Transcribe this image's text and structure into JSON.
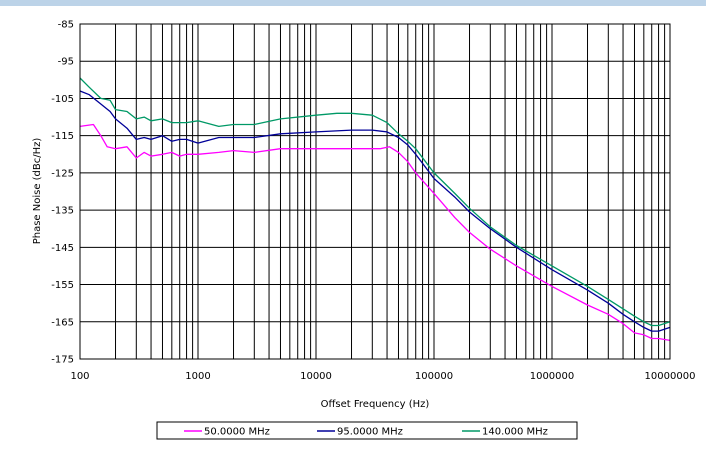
{
  "chart_data": {
    "type": "line",
    "xscale": "log",
    "xlim": [
      100,
      10000000
    ],
    "ylim": [
      -175,
      -85
    ],
    "xlabel": "Offset Frequency (Hz)",
    "ylabel": "Phase Noise (dBc/Hz)",
    "x_ticks": [
      "100",
      "1000",
      "10000",
      "100000",
      "1000000",
      "10000000"
    ],
    "y_ticks": [
      "-85",
      "-95",
      "-105",
      "-115",
      "-125",
      "-135",
      "-145",
      "-155",
      "-165",
      "-175"
    ],
    "grid": true,
    "legend_position": "bottom",
    "series": [
      {
        "name": "50.0000 MHz",
        "color": "#ff00ff",
        "points": [
          [
            100,
            -112.5
          ],
          [
            130,
            -112
          ],
          [
            150,
            -115
          ],
          [
            170,
            -118
          ],
          [
            200,
            -118.5
          ],
          [
            250,
            -118
          ],
          [
            300,
            -121
          ],
          [
            350,
            -119.5
          ],
          [
            400,
            -120.5
          ],
          [
            500,
            -120
          ],
          [
            600,
            -119.5
          ],
          [
            700,
            -120.5
          ],
          [
            800,
            -120
          ],
          [
            1000,
            -120
          ],
          [
            1500,
            -119.5
          ],
          [
            2000,
            -119
          ],
          [
            3000,
            -119.5
          ],
          [
            5000,
            -118.5
          ],
          [
            10000,
            -118.5
          ],
          [
            20000,
            -118.5
          ],
          [
            35000,
            -118.5
          ],
          [
            42000,
            -118
          ],
          [
            50000,
            -119.5
          ],
          [
            60000,
            -122
          ],
          [
            70000,
            -125
          ],
          [
            100000,
            -130.5
          ],
          [
            150000,
            -137
          ],
          [
            200000,
            -141
          ],
          [
            300000,
            -145.5
          ],
          [
            500000,
            -150
          ],
          [
            1000000,
            -155.5
          ],
          [
            2000000,
            -160.5
          ],
          [
            3000000,
            -163
          ],
          [
            4000000,
            -165.5
          ],
          [
            5000000,
            -168
          ],
          [
            6000000,
            -168.5
          ],
          [
            7000000,
            -169.5
          ],
          [
            8000000,
            -169.5
          ],
          [
            10000000,
            -170
          ]
        ]
      },
      {
        "name": "95.0000 MHz",
        "color": "#000099",
        "points": [
          [
            100,
            -103
          ],
          [
            120,
            -104
          ],
          [
            150,
            -106.5
          ],
          [
            180,
            -108.5
          ],
          [
            200,
            -110.5
          ],
          [
            250,
            -113
          ],
          [
            300,
            -116
          ],
          [
            350,
            -115.5
          ],
          [
            400,
            -116
          ],
          [
            500,
            -115
          ],
          [
            600,
            -116.5
          ],
          [
            700,
            -116
          ],
          [
            800,
            -116
          ],
          [
            1000,
            -117
          ],
          [
            1500,
            -115.5
          ],
          [
            2000,
            -115.5
          ],
          [
            3000,
            -115.5
          ],
          [
            5000,
            -114.5
          ],
          [
            10000,
            -114
          ],
          [
            20000,
            -113.5
          ],
          [
            30000,
            -113.5
          ],
          [
            40000,
            -114
          ],
          [
            50000,
            -115.5
          ],
          [
            60000,
            -117.5
          ],
          [
            70000,
            -120
          ],
          [
            100000,
            -126.5
          ],
          [
            150000,
            -131.5
          ],
          [
            200000,
            -135.5
          ],
          [
            300000,
            -140
          ],
          [
            500000,
            -145
          ],
          [
            1000000,
            -151
          ],
          [
            2000000,
            -156.5
          ],
          [
            3000000,
            -160
          ],
          [
            4000000,
            -163
          ],
          [
            5000000,
            -165
          ],
          [
            6000000,
            -166.5
          ],
          [
            7000000,
            -167.5
          ],
          [
            8000000,
            -167.5
          ],
          [
            10000000,
            -166.5
          ]
        ]
      },
      {
        "name": "140.000 MHz",
        "color": "#009966",
        "points": [
          [
            100,
            -99.5
          ],
          [
            120,
            -102
          ],
          [
            150,
            -105
          ],
          [
            180,
            -105.5
          ],
          [
            200,
            -108
          ],
          [
            250,
            -108.5
          ],
          [
            300,
            -110.5
          ],
          [
            350,
            -110
          ],
          [
            400,
            -111
          ],
          [
            500,
            -110.5
          ],
          [
            600,
            -111.5
          ],
          [
            700,
            -111.5
          ],
          [
            800,
            -111.5
          ],
          [
            1000,
            -111
          ],
          [
            1500,
            -112.5
          ],
          [
            2000,
            -112
          ],
          [
            3000,
            -112
          ],
          [
            5000,
            -110.5
          ],
          [
            10000,
            -109.5
          ],
          [
            15000,
            -109
          ],
          [
            20000,
            -109
          ],
          [
            30000,
            -109.5
          ],
          [
            40000,
            -111.5
          ],
          [
            50000,
            -114.5
          ],
          [
            60000,
            -116.5
          ],
          [
            70000,
            -118.5
          ],
          [
            100000,
            -125
          ],
          [
            150000,
            -130.5
          ],
          [
            200000,
            -134.5
          ],
          [
            300000,
            -139.5
          ],
          [
            500000,
            -144.5
          ],
          [
            1000000,
            -150
          ],
          [
            2000000,
            -155.5
          ],
          [
            3000000,
            -159
          ],
          [
            4000000,
            -161.5
          ],
          [
            5000000,
            -163.5
          ],
          [
            6000000,
            -165
          ],
          [
            7000000,
            -166
          ],
          [
            8000000,
            -166
          ],
          [
            10000000,
            -165
          ]
        ]
      }
    ]
  }
}
